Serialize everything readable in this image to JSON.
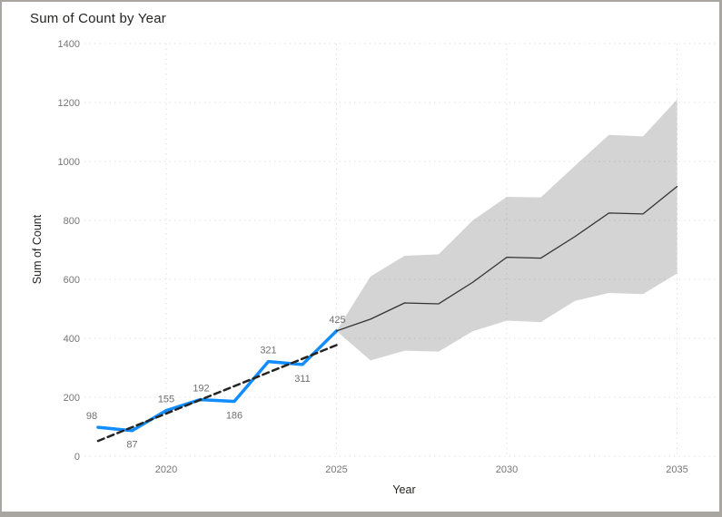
{
  "title": "Sum of Count by Year",
  "colors": {
    "history_line": "#118DFF",
    "trend_line": "#252423",
    "forecast_line": "#333333",
    "confidence_band": "rgba(90,90,90,0.26)",
    "gridline": "#e1e1e1",
    "tick_label": "#777575",
    "title_text": "#252423",
    "frame_border": "#a9a6a2"
  },
  "chart_data": {
    "type": "line",
    "title": "Sum of Count by Year",
    "xlabel": "Year",
    "ylabel": "Sum of Count",
    "x_ticks": [
      2020,
      2025,
      2030,
      2035
    ],
    "y_ticks": [
      0,
      200,
      400,
      600,
      800,
      1000,
      1200,
      1400
    ],
    "ylim": [
      0,
      1400
    ],
    "xlim": [
      2017.6,
      2036.2
    ],
    "grid": "dotted",
    "legend": "none",
    "series": [
      {
        "name": "Sum of Count (history)",
        "kind": "line",
        "color": "#118DFF",
        "stroke_width": 3.5,
        "x": [
          2018,
          2019,
          2020,
          2021,
          2022,
          2023,
          2024,
          2025
        ],
        "values": [
          98,
          87,
          155,
          192,
          186,
          321,
          311,
          425
        ]
      },
      {
        "name": "Trend line",
        "kind": "line",
        "style": "dashed",
        "color": "#252423",
        "stroke_width": 2.5,
        "x": [
          2018,
          2025
        ],
        "values": [
          52,
          377
        ]
      },
      {
        "name": "Forecast",
        "kind": "line",
        "color": "#333333",
        "stroke_width": 1.3,
        "x": [
          2025,
          2026,
          2027,
          2028,
          2029,
          2030,
          2031,
          2032,
          2033,
          2034,
          2035
        ],
        "values": [
          425,
          465,
          520,
          517,
          590,
          675,
          672,
          745,
          825,
          822,
          915
        ]
      },
      {
        "name": "Forecast confidence interval",
        "kind": "band",
        "color": "rgba(90,90,90,0.26)",
        "x": [
          2025,
          2026,
          2027,
          2028,
          2029,
          2030,
          2031,
          2032,
          2033,
          2034,
          2035
        ],
        "upper": [
          425,
          610,
          680,
          685,
          800,
          880,
          878,
          985,
          1090,
          1085,
          1210
        ],
        "lower": [
          425,
          325,
          358,
          355,
          424,
          460,
          455,
          527,
          554,
          550,
          620
        ]
      }
    ],
    "data_labels": [
      {
        "x": 2018,
        "value": 98,
        "position": "above",
        "dx": -7
      },
      {
        "x": 2019,
        "value": 87,
        "position": "below",
        "dx": 0
      },
      {
        "x": 2020,
        "value": 155,
        "position": "above",
        "dx": 0
      },
      {
        "x": 2021,
        "value": 192,
        "position": "above",
        "dx": 1
      },
      {
        "x": 2022,
        "value": 186,
        "position": "below",
        "dx": 0
      },
      {
        "x": 2023,
        "value": 321,
        "position": "above",
        "dx": 0
      },
      {
        "x": 2024,
        "value": 311,
        "position": "below",
        "dx": 0
      },
      {
        "x": 2025,
        "value": 425,
        "position": "above",
        "dx": 1
      }
    ]
  }
}
